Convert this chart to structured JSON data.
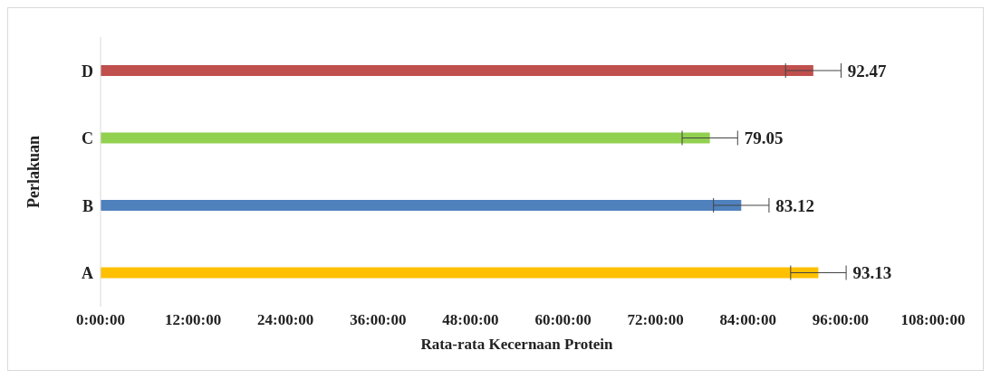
{
  "chart_data": {
    "type": "bar",
    "orientation": "horizontal",
    "xlabel": "Rata-rata Kecernaan Protein",
    "ylabel": "Perlakuan",
    "categories": [
      "D",
      "C",
      "B",
      "A"
    ],
    "values": [
      92.47,
      79.05,
      83.12,
      93.13
    ],
    "colors": [
      "#c0504d",
      "#92d050",
      "#4f81bd",
      "#ffc000"
    ],
    "errors": [
      3.6,
      3.6,
      3.6,
      3.6
    ],
    "data_labels": true,
    "xlim": [
      0,
      108
    ],
    "xticks": [
      {
        "value": 0,
        "label": "0:00:00"
      },
      {
        "value": 12,
        "label": "12:00:00"
      },
      {
        "value": 24,
        "label": "24:00:00"
      },
      {
        "value": 36,
        "label": "36:00:00"
      },
      {
        "value": 48,
        "label": "48:00:00"
      },
      {
        "value": 60,
        "label": "60:00:00"
      },
      {
        "value": 72,
        "label": "72:00:00"
      },
      {
        "value": 84,
        "label": "84:00:00"
      },
      {
        "value": 96,
        "label": "96:00:00"
      },
      {
        "value": 108,
        "label": "108:00:00"
      }
    ],
    "grid": false,
    "legend": false
  }
}
